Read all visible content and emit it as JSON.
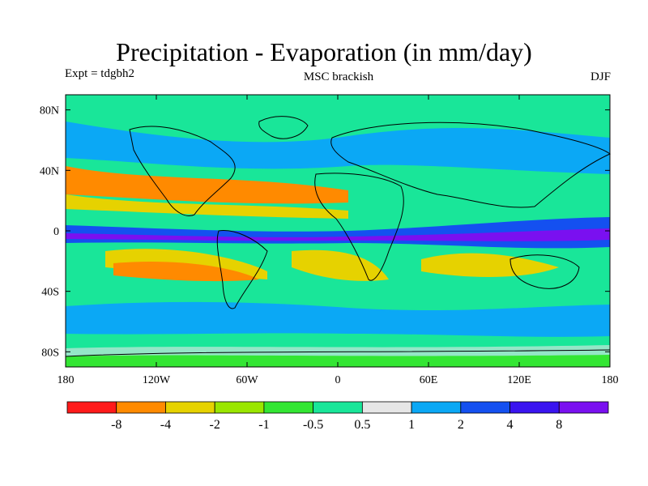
{
  "title": "Precipitation - Evaporation (in mm/day)",
  "left_label": "Expt = tdgbh2",
  "center_label": "MSC brackish",
  "right_label": "DJF",
  "map": {
    "projection": "cylindrical equidistant",
    "lon_range": [
      -180,
      180
    ],
    "lat_range": [
      -90,
      90
    ],
    "lat_ticks": [
      "80N",
      "40N",
      "0",
      "40S",
      "80S"
    ],
    "lat_tick_values": [
      80,
      40,
      0,
      -40,
      -80
    ],
    "lon_ticks": [
      "180",
      "120W",
      "60W",
      "0",
      "60E",
      "120E",
      "180"
    ],
    "lon_tick_values": [
      -180,
      -120,
      -60,
      0,
      60,
      120,
      180
    ]
  },
  "colorbar": {
    "colors": [
      "#ff1a1a",
      "#ff8a00",
      "#e6d200",
      "#9ae600",
      "#33e633",
      "#19e699",
      "#e6e6e6",
      "#0ba8f5",
      "#1450f0",
      "#3a14f0",
      "#7a10f0"
    ],
    "labels": [
      "-8",
      "-4",
      "-2",
      "-1",
      "-0.5",
      "0.5",
      "1",
      "2",
      "4",
      "8"
    ]
  }
}
